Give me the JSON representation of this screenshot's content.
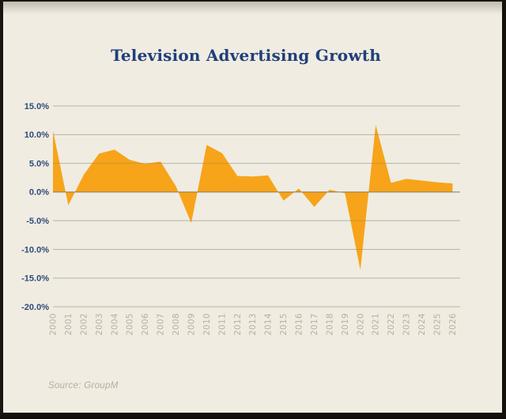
{
  "title": "Television Advertising Growth",
  "source": "Source: GroupM",
  "colors": {
    "background": "#f0ece1",
    "frame": "#1b1511",
    "area": "#F7A41A",
    "title_text": "#21407a",
    "y_label_text": "#2d4a7c",
    "x_label_text": "#b4b0a3",
    "gridline": "#dcd8cb",
    "gridline_over_area": "rgba(130,125,110,0.38)",
    "zero_line": "rgba(108,103,88,0.62)",
    "source_text": "#b2ae9f"
  },
  "chart_data": {
    "type": "area",
    "title": "Television Advertising Growth",
    "xlabel": "",
    "ylabel": "",
    "legend": "none",
    "grid": "horizontal",
    "baseline": 0,
    "ylim": [
      -20,
      15
    ],
    "y_tick_values": [
      15,
      10,
      5,
      0,
      -5,
      -10,
      -15,
      -20
    ],
    "y_tick_labels": [
      "15.0%",
      "10.0%",
      "5.0%",
      "0.0%",
      "-5.0%",
      "-10.0%",
      "-15.0%",
      "-20.0%"
    ],
    "categories": [
      "2000",
      "2001",
      "2002",
      "2003",
      "2004",
      "2005",
      "2006",
      "2007",
      "2008",
      "2009",
      "2010",
      "2011",
      "2012",
      "2013",
      "2014",
      "2015",
      "2016",
      "2017",
      "2018",
      "2019",
      "2020",
      "2021",
      "2022",
      "2023",
      "2024",
      "2025",
      "2026"
    ],
    "values": [
      10.7,
      -2.3,
      3.0,
      6.7,
      7.4,
      5.6,
      4.9,
      5.3,
      1.0,
      -5.4,
      8.2,
      6.8,
      2.8,
      2.7,
      2.9,
      -1.5,
      0.6,
      -2.6,
      0.4,
      -0.2,
      -13.6,
      11.7,
      1.6,
      2.3,
      2.0,
      1.7,
      1.5
    ],
    "unit": "%",
    "source": "Source: GroupM"
  }
}
